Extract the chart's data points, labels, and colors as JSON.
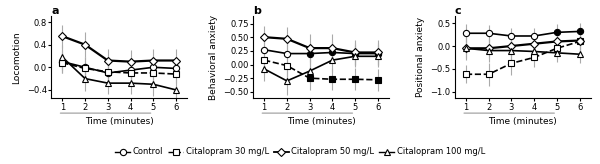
{
  "time": [
    1,
    2,
    3,
    4,
    5,
    6
  ],
  "panel_a": {
    "title": "a",
    "ylabel": "Locomotion",
    "ylim": [
      -0.55,
      0.9
    ],
    "yticks": [
      -0.4,
      0.0,
      0.4,
      0.8
    ],
    "control": {
      "y": [
        0.1,
        0.0,
        -0.1,
        -0.05,
        0.0,
        -0.02
      ],
      "err": [
        0.2,
        0.18,
        0.16,
        0.15,
        0.15,
        0.15
      ],
      "filled": [
        false,
        false,
        false,
        false,
        false,
        false
      ]
    },
    "cit30": {
      "y": [
        0.08,
        -0.02,
        -0.08,
        -0.1,
        -0.1,
        -0.12
      ],
      "err": [
        0.18,
        0.2,
        0.18,
        0.17,
        0.16,
        0.16
      ],
      "filled": [
        false,
        false,
        false,
        false,
        false,
        false
      ]
    },
    "cit50": {
      "y": [
        0.55,
        0.4,
        0.12,
        0.1,
        0.12,
        0.12
      ],
      "err": [
        0.2,
        0.22,
        0.2,
        0.2,
        0.2,
        0.2
      ],
      "filled": [
        false,
        false,
        false,
        false,
        false,
        false
      ]
    },
    "cit100": {
      "y": [
        0.18,
        -0.2,
        -0.28,
        -0.28,
        -0.3,
        -0.4
      ],
      "err": [
        0.22,
        0.22,
        0.2,
        0.2,
        0.2,
        0.2
      ],
      "filled": [
        false,
        false,
        false,
        false,
        false,
        false
      ]
    }
  },
  "panel_b": {
    "title": "b",
    "ylabel": "Behavioral anxiety",
    "ylim": [
      -0.62,
      0.88
    ],
    "yticks": [
      -0.5,
      -0.25,
      0.0,
      0.25,
      0.5,
      0.75
    ],
    "control": {
      "y": [
        0.27,
        0.2,
        0.2,
        0.22,
        0.2,
        0.2
      ],
      "err": [
        0.18,
        0.22,
        0.2,
        0.2,
        0.2,
        0.2
      ],
      "filled": [
        false,
        false,
        true,
        true,
        true,
        true
      ]
    },
    "cit30": {
      "y": [
        0.08,
        -0.02,
        -0.25,
        -0.27,
        -0.27,
        -0.28
      ],
      "err": [
        0.2,
        0.22,
        0.22,
        0.2,
        0.2,
        0.2
      ],
      "filled": [
        false,
        false,
        true,
        true,
        true,
        true
      ]
    },
    "cit50": {
      "y": [
        0.5,
        0.47,
        0.3,
        0.3,
        0.22,
        0.22
      ],
      "err": [
        0.2,
        0.22,
        0.25,
        0.25,
        0.22,
        0.22
      ],
      "filled": [
        false,
        false,
        false,
        false,
        false,
        false
      ]
    },
    "cit100": {
      "y": [
        -0.08,
        -0.3,
        -0.12,
        0.08,
        0.15,
        0.15
      ],
      "err": [
        0.22,
        0.25,
        0.22,
        0.22,
        0.2,
        0.2
      ],
      "filled": [
        false,
        false,
        false,
        false,
        false,
        false
      ]
    }
  },
  "panel_c": {
    "title": "c",
    "ylabel": "Positional anxiety",
    "ylim": [
      -1.15,
      0.65
    ],
    "yticks": [
      -1.0,
      -0.5,
      0.0,
      0.5
    ],
    "control": {
      "y": [
        0.28,
        0.28,
        0.22,
        0.22,
        0.3,
        0.32
      ],
      "err": [
        0.2,
        0.18,
        0.18,
        0.18,
        0.18,
        0.18
      ],
      "filled": [
        false,
        false,
        false,
        false,
        true,
        true
      ]
    },
    "cit30": {
      "y": [
        -0.62,
        -0.62,
        -0.38,
        -0.25,
        -0.05,
        0.1
      ],
      "err": [
        0.2,
        0.25,
        0.25,
        0.22,
        0.22,
        0.22
      ],
      "filled": [
        false,
        false,
        false,
        false,
        false,
        false
      ]
    },
    "cit50": {
      "y": [
        -0.05,
        -0.05,
        0.0,
        0.05,
        0.1,
        0.12
      ],
      "err": [
        0.22,
        0.22,
        0.22,
        0.22,
        0.2,
        0.2
      ],
      "filled": [
        false,
        false,
        false,
        false,
        false,
        false
      ]
    },
    "cit100": {
      "y": [
        -0.05,
        -0.1,
        -0.1,
        -0.12,
        -0.15,
        -0.18
      ],
      "err": [
        0.25,
        0.25,
        0.22,
        0.2,
        0.2,
        0.2
      ],
      "filled": [
        false,
        false,
        false,
        false,
        false,
        false
      ]
    }
  },
  "legend": {
    "control_label": "Control",
    "cit30_label": "Citalopram 30 mg/L",
    "cit50_label": "Citalopram 50 mg/L",
    "cit100_label": "Citalopram 100 mg/L"
  },
  "styles": {
    "control": {
      "color": "black",
      "marker": "o",
      "linestyle": "-",
      "linewidth": 1.2
    },
    "cit30": {
      "color": "black",
      "marker": "s",
      "linestyle": "--",
      "linewidth": 1.2
    },
    "cit50": {
      "color": "black",
      "marker": "D",
      "linestyle": "-",
      "linewidth": 1.6
    },
    "cit100": {
      "color": "black",
      "marker": "^",
      "linestyle": "-",
      "linewidth": 1.2
    }
  },
  "xlabel": "Time (minutes)",
  "error_color": "#aaaaaa",
  "markersize": 4.5
}
